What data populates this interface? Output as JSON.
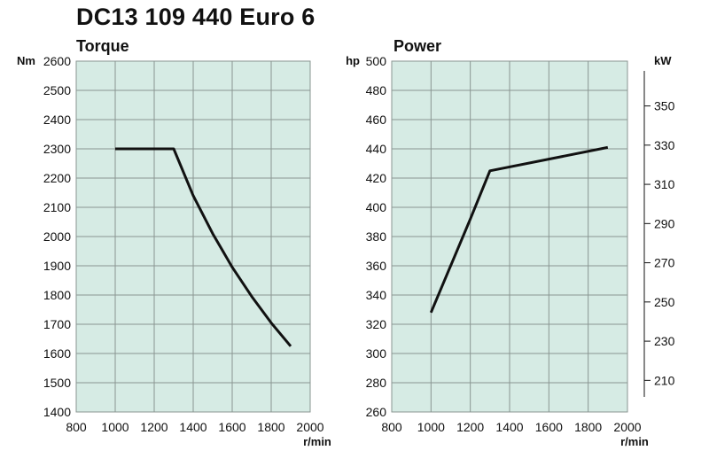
{
  "title": "DC13 109 440 Euro 6",
  "x_unit": "r/min",
  "colors": {
    "plot_bg": "#d6ebe4",
    "grid": "#8a9692",
    "line": "#111111"
  },
  "chart_data": [
    {
      "type": "line",
      "title": "Torque",
      "ylabel": "Nm",
      "xlim": [
        800,
        2000
      ],
      "ylim": [
        1400,
        2600
      ],
      "xticks": [
        800,
        1000,
        1200,
        1400,
        1600,
        1800,
        2000
      ],
      "yticks": [
        1400,
        1500,
        1600,
        1700,
        1800,
        1900,
        2000,
        2100,
        2200,
        2300,
        2400,
        2500,
        2600
      ],
      "grid": true,
      "series": [
        {
          "x": [
            1000,
            1300,
            1400,
            1500,
            1600,
            1700,
            1800,
            1900
          ],
          "y": [
            2300,
            2300,
            2140,
            2010,
            1895,
            1795,
            1705,
            1625
          ]
        }
      ]
    },
    {
      "type": "line",
      "title": "Power",
      "ylabel": "hp",
      "y2label": "kW",
      "xlim": [
        800,
        2000
      ],
      "ylim": [
        260,
        500
      ],
      "xticks": [
        800,
        1000,
        1200,
        1400,
        1600,
        1800,
        2000
      ],
      "yticks": [
        260,
        280,
        300,
        320,
        340,
        360,
        380,
        400,
        420,
        440,
        460,
        480,
        500
      ],
      "y2ticks": [
        210,
        230,
        250,
        270,
        290,
        310,
        330,
        350
      ],
      "grid": true,
      "series": [
        {
          "x": [
            1000,
            1100,
            1200,
            1300,
            1900
          ],
          "y": [
            328,
            360,
            392,
            425,
            441
          ]
        }
      ]
    }
  ]
}
